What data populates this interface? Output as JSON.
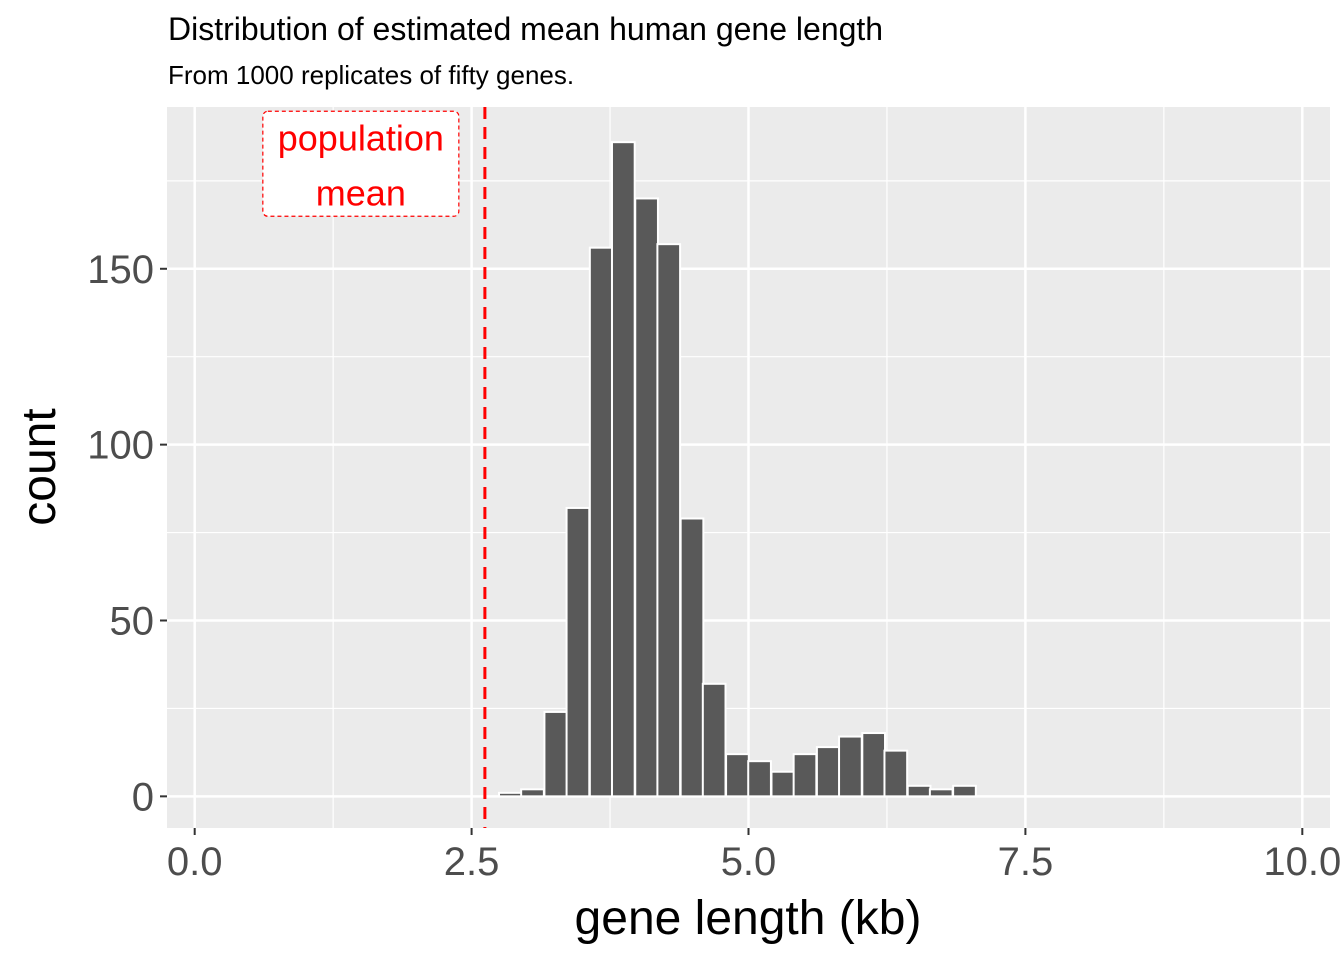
{
  "chart_data": {
    "type": "bar",
    "subtype": "histogram",
    "title": "Distribution of estimated mean human gene length",
    "subtitle": "From 1000 replicates of fifty genes.",
    "xlabel": "gene length (kb)",
    "ylabel": "count",
    "xlim": [
      -0.25,
      10.25
    ],
    "ylim": [
      -9,
      196
    ],
    "xticks": [
      0,
      2.5,
      5,
      7.5,
      10
    ],
    "xtick_labels": [
      "0.0",
      "2.5",
      "5.0",
      "7.5",
      "10.0"
    ],
    "yticks": [
      0,
      50,
      100,
      150
    ],
    "ytick_labels": [
      "0",
      "50",
      "100",
      "150"
    ],
    "grid": true,
    "bin_width": 0.205,
    "bin_centers": [
      2.85,
      3.05,
      3.26,
      3.46,
      3.67,
      3.87,
      4.08,
      4.28,
      4.49,
      4.69,
      4.9,
      5.1,
      5.31,
      5.51,
      5.72,
      5.92,
      6.13,
      6.33,
      6.54,
      6.74,
      6.95
    ],
    "values": [
      1,
      2,
      24,
      82,
      156,
      186,
      170,
      157,
      79,
      32,
      12,
      10,
      7,
      12,
      14,
      17,
      18,
      13,
      3,
      2,
      3
    ],
    "bar_color": "#595959",
    "bar_outline": "#ffffff",
    "panel_background": "#ebebeb",
    "reference_line": {
      "x": 2.62,
      "color": "#ff0000",
      "style": "dashed"
    },
    "annotation": {
      "line1": "population",
      "line2": "mean",
      "x": 1.5,
      "y": 180,
      "color": "#ff0000"
    }
  }
}
